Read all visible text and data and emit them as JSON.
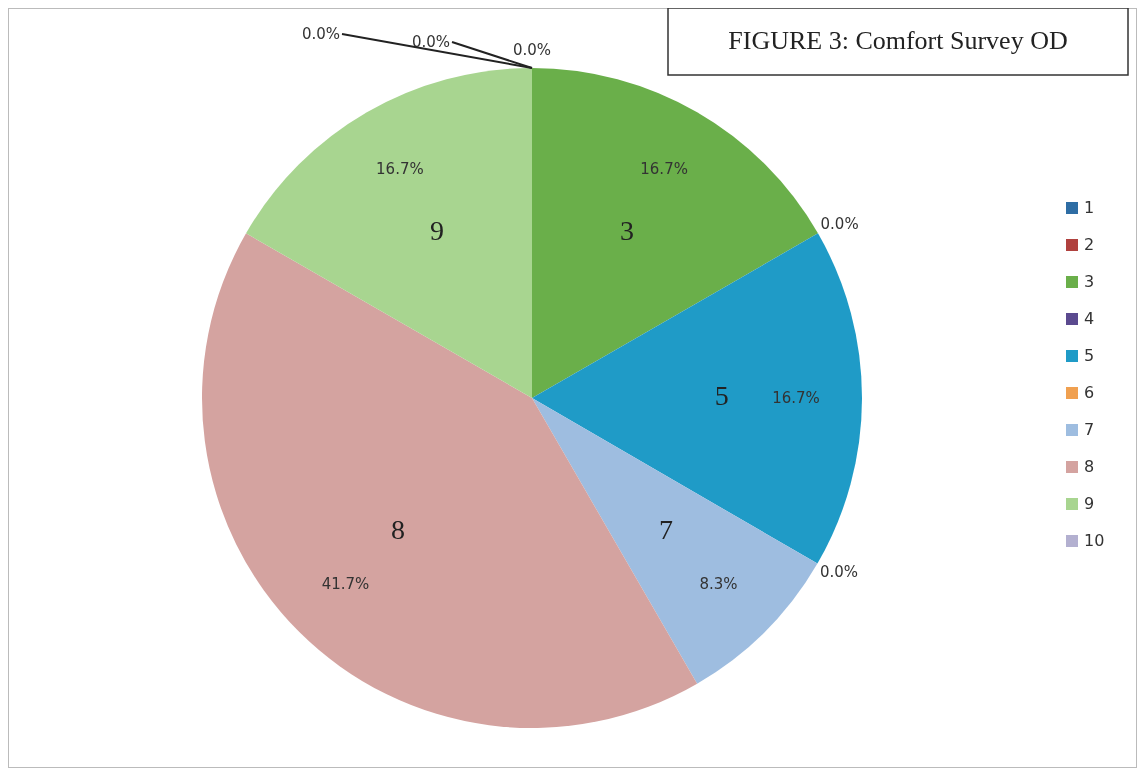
{
  "chart_data": {
    "type": "pie",
    "title": "FIGURE 3: Comfort Survey OD",
    "categories": [
      "1",
      "2",
      "3",
      "4",
      "5",
      "6",
      "7",
      "8",
      "9",
      "10"
    ],
    "values": [
      0,
      0,
      16.7,
      0,
      16.7,
      0,
      8.3,
      41.7,
      16.7,
      0
    ],
    "value_labels": [
      "0.0%",
      "0.0%",
      "16.7%",
      "0.0%",
      "16.7%",
      "0.0%",
      "8.3%",
      "41.7%",
      "16.7%",
      "0.0%"
    ],
    "colors": [
      "#2e6da4",
      "#b0413e",
      "#6aaf4a",
      "#5b4a8f",
      "#1f9bc7",
      "#f0a050",
      "#9ebde0",
      "#d4a3a0",
      "#a8d590",
      "#b3b0d0"
    ],
    "legend": "right"
  }
}
